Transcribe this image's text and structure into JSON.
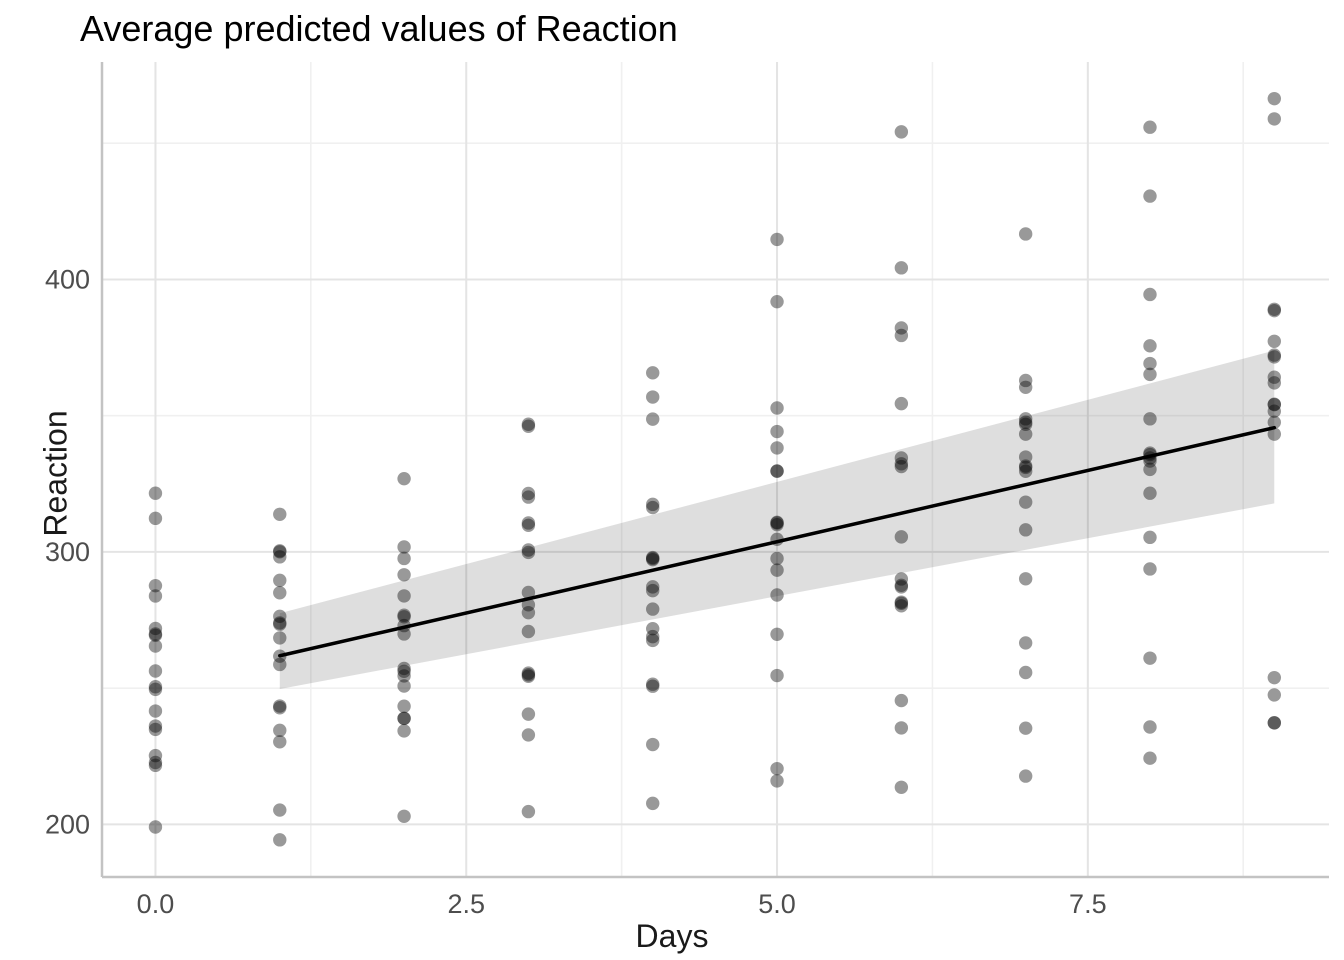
{
  "title": "Average predicted values of Reaction",
  "chart_data": {
    "type": "scatter",
    "title": "Average predicted values of Reaction",
    "xlabel": "Days",
    "ylabel": "Reaction",
    "xlim": [
      -0.43,
      9.44
    ],
    "ylim": [
      180.7,
      479.8
    ],
    "x_ticks": [
      0,
      2.5,
      5,
      7.5
    ],
    "x_tick_labels": [
      "0.0",
      "2.5",
      "5.0",
      "7.5"
    ],
    "x_minor_ticks": [
      1.25,
      3.75,
      6.25,
      8.75
    ],
    "y_ticks": [
      200,
      300,
      400
    ],
    "y_tick_labels": [
      "200",
      "300",
      "400"
    ],
    "y_minor_ticks": [
      250,
      350,
      450
    ],
    "grid": true,
    "legend": "none",
    "x": [
      0,
      1,
      2,
      3,
      4,
      5,
      6,
      7,
      8,
      9
    ],
    "series": [
      [
        249.56,
        258.7,
        250.8,
        321.44,
        356.85,
        414.69,
        382.2,
        290.15,
        430.59,
        466.35
      ],
      [
        222.73,
        205.27,
        202.98,
        204.71,
        207.72,
        215.96,
        213.63,
        217.73,
        224.3,
        237.31
      ],
      [
        199.05,
        194.33,
        234.32,
        232.84,
        229.31,
        220.46,
        235.42,
        255.75,
        261.01,
        247.52
      ],
      [
        321.54,
        300.4,
        283.86,
        285.13,
        285.8,
        297.59,
        280.24,
        318.26,
        305.35,
        354.05
      ],
      [
        287.61,
        285.0,
        301.82,
        320.12,
        316.28,
        293.32,
        290.08,
        334.82,
        293.75,
        371.58
      ],
      [
        234.86,
        242.81,
        272.96,
        309.77,
        317.46,
        310.0,
        454.16,
        346.83,
        330.3,
        253.86
      ],
      [
        283.84,
        289.56,
        276.77,
        299.81,
        297.17,
        338.17,
        332.35,
        348.84,
        333.36,
        362.04
      ],
      [
        265.47,
        276.37,
        243.36,
        254.37,
        279.02,
        284.19,
        305.52,
        331.52,
        335.75,
        377.3
      ],
      [
        241.61,
        273.95,
        254.49,
        270.8,
        251.45,
        254.64,
        245.45,
        235.31,
        235.75,
        237.25
      ],
      [
        312.33,
        313.81,
        291.61,
        346.12,
        365.73,
        391.84,
        404.26,
        416.69,
        455.86,
        458.92
      ],
      [
        236.1,
        230.32,
        238.93,
        254.92,
        250.71,
        269.77,
        281.56,
        308.1,
        336.28,
        351.65
      ],
      [
        256.3,
        243.45,
        256.2,
        255.53,
        268.92,
        329.72,
        379.44,
        362.92,
        394.49,
        389.05
      ],
      [
        250.53,
        300.06,
        269.89,
        280.59,
        271.83,
        304.63,
        287.75,
        266.6,
        321.54,
        347.57
      ],
      [
        221.68,
        298.19,
        326.88,
        346.86,
        348.74,
        352.83,
        354.43,
        360.43,
        375.64,
        388.54
      ],
      [
        271.92,
        268.44,
        257.24,
        277.71,
        297.6,
        310.63,
        287.17,
        329.61,
        334.48,
        343.22
      ],
      [
        225.26,
        234.52,
        238.9,
        240.47,
        267.54,
        344.19,
        281.15,
        347.59,
        365.16,
        372.23
      ],
      [
        269.88,
        261.74,
        276.2,
        300.71,
        297.93,
        310.85,
        331.33,
        331.01,
        348.84,
        354.21
      ],
      [
        269.41,
        273.47,
        297.6,
        310.63,
        287.17,
        329.61,
        334.48,
        343.22,
        369.14,
        364.12
      ]
    ],
    "fit_line": {
      "x": [
        1,
        9
      ],
      "y": [
        261.9,
        345.6
      ]
    },
    "ribbon": {
      "x": [
        1,
        9
      ],
      "lower": [
        249.7,
        317.8
      ],
      "upper": [
        277.5,
        373.9
      ]
    },
    "style": {
      "point_color": "#000000",
      "point_opacity": 0.4,
      "point_radius": 6.7,
      "line_color": "#000000",
      "line_width": 3.5,
      "ribbon_color": "#000000",
      "ribbon_opacity": 0.13,
      "grid_major_color": "#e4e4e4",
      "grid_minor_color": "#f0f0f0",
      "axis_line_color": "#c3c3c3",
      "tick_label_color": "#4d4d4d"
    }
  }
}
